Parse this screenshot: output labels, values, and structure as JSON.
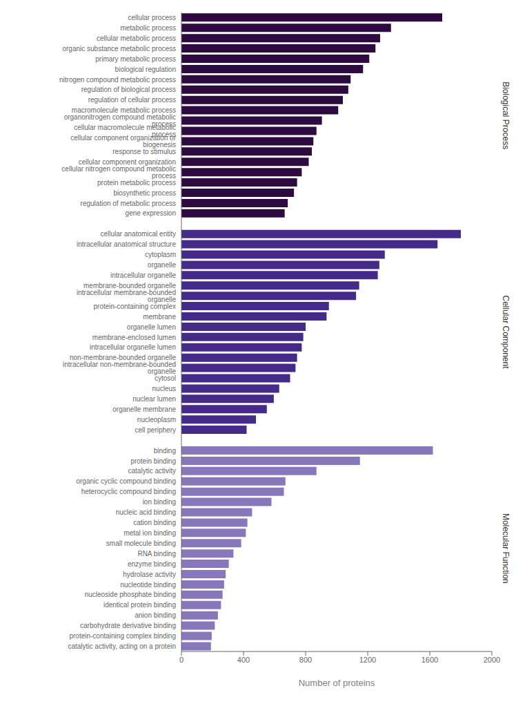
{
  "chart_data": {
    "type": "bar",
    "orientation": "horizontal",
    "xlabel": "Number of proteins",
    "xlim": [
      0,
      2000
    ],
    "xticks": [
      0,
      400,
      800,
      1200,
      1600,
      2000
    ],
    "categories": [
      "cellular process",
      "metabolic process",
      "cellular metabolic process",
      "organic substance metabolic process",
      "primary metabolic process",
      "biological regulation",
      "nitrogen compound metabolic process",
      "regulation of biological process",
      "regulation of cellular process",
      "macromolecule metabolic process",
      "organonitrogen compound metabolic process",
      "cellular macromolecule metabolic process",
      "cellular component organization or biogenesis",
      "response to stimulus",
      "cellular component organization",
      "cellular nitrogen compound metabolic process",
      "protein metabolic process",
      "biosynthetic process",
      "regulation of metabolic process",
      "gene expression",
      null,
      "cellular anatomical entity",
      "intracellular anatomical structure",
      "cytoplasm",
      "organelle",
      "intracellular organelle",
      "membrane-bounded organelle",
      "intracellular membrane-bounded organelle",
      "protein-containing complex",
      "membrane",
      "organelle lumen",
      "membrane-enclosed lumen",
      "intracellular organelle lumen",
      "non-membrane-bounded organelle",
      "intracellular non-membrane-bounded organelle",
      "cytosol",
      "nucleus",
      "nuclear lumen",
      "organelle membrane",
      "nucleoplasm",
      "cell periphery",
      null,
      "binding",
      "protein binding",
      "catalytic activity",
      "organic cyclic compound binding",
      "heterocyclic compound binding",
      "ion binding",
      "nucleic acid binding",
      "cation binding",
      "metal ion binding",
      "small molecule binding",
      "RNA binding",
      "enzyme binding",
      "hydrolase activity",
      "nucleotide binding",
      "nucleoside phosphate binding",
      "identical protein binding",
      "anion binding",
      "carbohydrate derivative binding",
      "protein-containing complex binding",
      "catalytic activity, acting on a protein"
    ],
    "series": [
      {
        "name": "Biological Process",
        "color": "#2d0a40",
        "values": [
          1680,
          1350,
          1280,
          1250,
          1210,
          1170,
          1090,
          1075,
          1040,
          1010,
          905,
          870,
          850,
          840,
          820,
          775,
          745,
          725,
          685,
          665,
          null,
          null,
          null,
          null,
          null,
          null,
          null,
          null,
          null,
          null,
          null,
          null,
          null,
          null,
          null,
          null,
          null,
          null,
          null,
          null,
          null,
          null,
          null,
          null,
          null,
          null,
          null,
          null,
          null,
          null,
          null,
          null,
          null,
          null,
          null,
          null,
          null,
          null,
          null,
          null,
          null,
          null
        ]
      },
      {
        "name": "Cellular Component",
        "color": "#452a8a",
        "values": [
          null,
          null,
          null,
          null,
          null,
          null,
          null,
          null,
          null,
          null,
          null,
          null,
          null,
          null,
          null,
          null,
          null,
          null,
          null,
          null,
          null,
          1800,
          1650,
          1310,
          1275,
          1265,
          1145,
          1125,
          950,
          935,
          800,
          785,
          775,
          745,
          735,
          700,
          630,
          595,
          550,
          480,
          420,
          null,
          null,
          null,
          null,
          null,
          null,
          null,
          null,
          null,
          null,
          null,
          null,
          null,
          null,
          null,
          null,
          null,
          null,
          null,
          null,
          null
        ]
      },
      {
        "name": "Molecular Function",
        "color": "#8878bb",
        "values": [
          null,
          null,
          null,
          null,
          null,
          null,
          null,
          null,
          null,
          null,
          null,
          null,
          null,
          null,
          null,
          null,
          null,
          null,
          null,
          null,
          null,
          null,
          null,
          null,
          null,
          null,
          null,
          null,
          null,
          null,
          null,
          null,
          null,
          null,
          null,
          null,
          null,
          null,
          null,
          null,
          null,
          null,
          1620,
          1150,
          870,
          670,
          660,
          580,
          455,
          425,
          415,
          385,
          335,
          305,
          285,
          275,
          265,
          255,
          235,
          215,
          195,
          190
        ]
      }
    ]
  }
}
